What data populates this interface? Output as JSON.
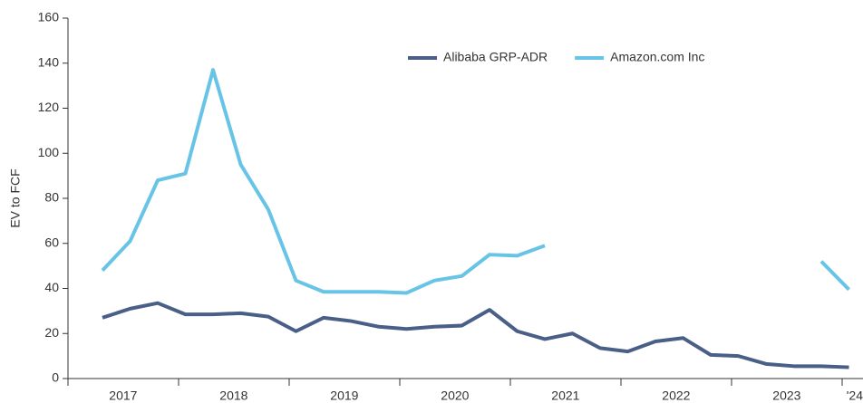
{
  "chart_data": {
    "type": "line",
    "y_label": "EV to FCF",
    "categories": [
      "2017",
      null,
      null,
      null,
      "2018",
      null,
      null,
      null,
      "2019",
      null,
      null,
      null,
      "2020",
      null,
      null,
      null,
      "2021",
      null,
      null,
      null,
      "2022",
      null,
      null,
      null,
      "2023",
      null,
      null,
      "'24"
    ],
    "series": [
      {
        "name": "Alibaba GRP-ADR",
        "color": "#4a5f87",
        "values": [
          27,
          31,
          33.5,
          28.5,
          28.5,
          29,
          27.5,
          21,
          27,
          25.5,
          23,
          22,
          23,
          23.5,
          30.5,
          21,
          17.5,
          20,
          13.5,
          12,
          16.5,
          18,
          10.5,
          10,
          6.5,
          5.5,
          5.5,
          5
        ]
      },
      {
        "name": "Amazon.com Inc",
        "color": "#67c4e6",
        "values": [
          48,
          61,
          88,
          91,
          137,
          95,
          75,
          43.5,
          38.5,
          38.5,
          38.5,
          38,
          43.5,
          45.5,
          55,
          54.5,
          59,
          null,
          null,
          null,
          null,
          null,
          null,
          null,
          null,
          null,
          52,
          39.5
        ]
      }
    ],
    "ylim": [
      0,
      160
    ],
    "yticks": [
      0,
      20,
      40,
      60,
      80,
      100,
      120,
      140,
      160
    ],
    "legend": "top"
  }
}
